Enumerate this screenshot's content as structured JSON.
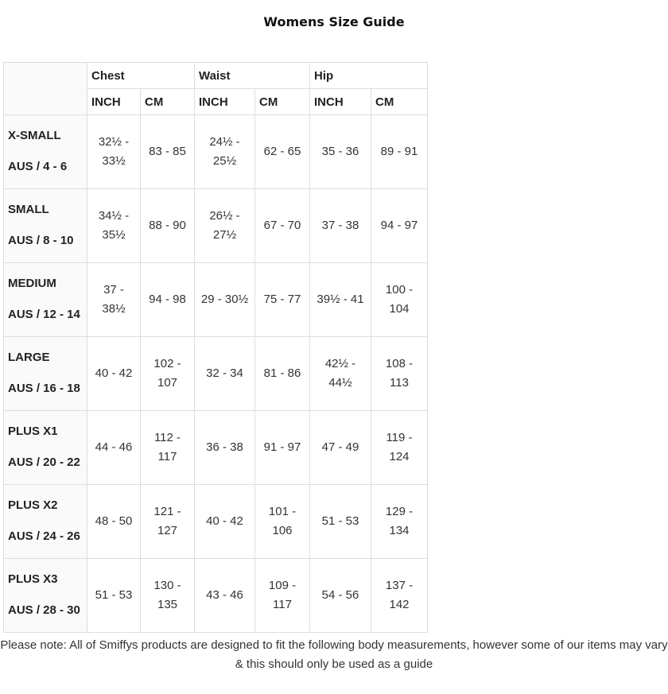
{
  "title": "Womens Size Guide",
  "groups": [
    "Chest",
    "Waist",
    "Hip"
  ],
  "units": [
    "INCH",
    "CM",
    "INCH",
    "CM",
    "INCH",
    "CM"
  ],
  "rows": [
    {
      "size": "X-SMALL",
      "aus": "AUS / 4 - 6",
      "values": [
        "32½ - 33½",
        "83 - 85",
        "24½ - 25½",
        "62 - 65",
        "35 - 36",
        "89 - 91"
      ]
    },
    {
      "size": "SMALL",
      "aus": "AUS / 8 - 10",
      "values": [
        "34½ - 35½",
        "88 - 90",
        "26½ - 27½",
        "67 - 70",
        "37 - 38",
        "94 - 97"
      ]
    },
    {
      "size": "MEDIUM",
      "aus": "AUS / 12 - 14",
      "values": [
        "37 - 38½",
        "94 - 98",
        "29 - 30½",
        "75 - 77",
        "39½ - 41",
        "100 - 104"
      ]
    },
    {
      "size": "LARGE",
      "aus": "AUS / 16 - 18",
      "values": [
        "40 - 42",
        "102 - 107",
        "32 - 34",
        "81 - 86",
        "42½ - 44½",
        "108 - 113"
      ]
    },
    {
      "size": "PLUS X1",
      "aus": "AUS / 20 - 22",
      "values": [
        "44 - 46",
        "112 - 117",
        "36 - 38",
        "91 - 97",
        "47 - 49",
        "119 - 124"
      ]
    },
    {
      "size": "PLUS X2",
      "aus": "AUS / 24 - 26",
      "values": [
        "48 - 50",
        "121 - 127",
        "40 - 42",
        "101 - 106",
        "51 - 53",
        "129 - 134"
      ]
    },
    {
      "size": "PLUS X3",
      "aus": "AUS / 28 - 30",
      "values": [
        "51 - 53",
        "130 - 135",
        "43 - 46",
        "109 - 117",
        "54 - 56",
        "137 - 142"
      ]
    }
  ],
  "note": "Please note: All of Smiffys products are designed to fit the following body measurements, however some of our items may vary & this should only be used as a guide"
}
